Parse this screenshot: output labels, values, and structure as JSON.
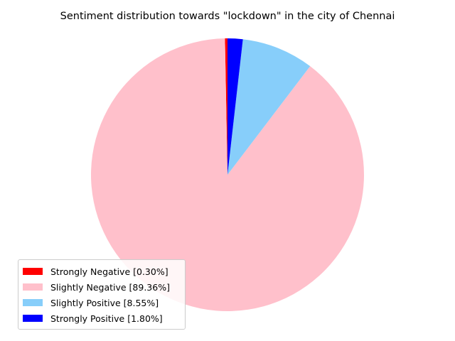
{
  "chart_data": {
    "type": "pie",
    "title": "Sentiment distribution towards \"lockdown\" in the city of Chennai",
    "categories": [
      "Strongly Negative",
      "Slightly Negative",
      "Slightly Positive",
      "Strongly Positive"
    ],
    "values": [
      0.3,
      89.36,
      8.55,
      1.8
    ],
    "legend_labels": [
      "Strongly Negative [0.30%]",
      "Slightly Negative [89.36%]",
      "Slightly Positive [8.55%]",
      "Strongly Positive [1.80%]"
    ],
    "colors": [
      "#ff0000",
      "#ffc0cb",
      "#87cefa",
      "#0000ff"
    ],
    "start_angle_deg": 90,
    "direction": "counterclockwise",
    "legend_position": "lower-left"
  }
}
